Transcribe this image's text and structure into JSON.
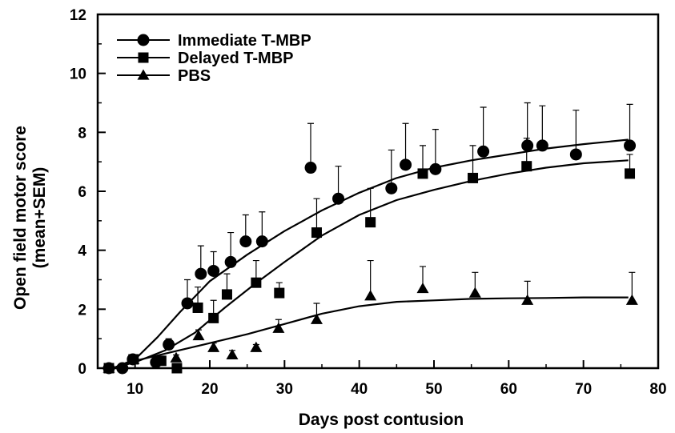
{
  "chart_data": {
    "type": "line",
    "title": "",
    "xlabel": "Days post contusion",
    "ylabel": "Open field motor score",
    "ylabel_sub": "(mean+SEM)",
    "xlim": [
      5,
      80
    ],
    "ylim": [
      0,
      12
    ],
    "x_ticks": [
      10,
      20,
      30,
      40,
      50,
      60,
      70,
      80
    ],
    "y_ticks": [
      0,
      2,
      4,
      6,
      8,
      10,
      12
    ],
    "grid": false,
    "legend_position": "top-left",
    "series": [
      {
        "name": "Immediate T-MBP",
        "marker": "circle",
        "points": [
          {
            "x": 6.5,
            "y": 0.0,
            "sem": 0.0
          },
          {
            "x": 8.3,
            "y": 0.0,
            "sem": 0.0
          },
          {
            "x": 9.7,
            "y": 0.3,
            "sem": 0.1
          },
          {
            "x": 12.8,
            "y": 0.2,
            "sem": 0.1
          },
          {
            "x": 14.5,
            "y": 0.8,
            "sem": 0.2
          },
          {
            "x": 17.0,
            "y": 2.2,
            "sem": 0.8
          },
          {
            "x": 18.8,
            "y": 3.2,
            "sem": 0.95
          },
          {
            "x": 20.5,
            "y": 3.3,
            "sem": 0.65
          },
          {
            "x": 22.8,
            "y": 3.6,
            "sem": 1.0
          },
          {
            "x": 24.8,
            "y": 4.3,
            "sem": 0.9
          },
          {
            "x": 27.0,
            "y": 4.3,
            "sem": 1.0
          },
          {
            "x": 33.5,
            "y": 6.8,
            "sem": 1.5
          },
          {
            "x": 37.2,
            "y": 5.75,
            "sem": 1.1
          },
          {
            "x": 44.3,
            "y": 6.1,
            "sem": 1.3
          },
          {
            "x": 46.2,
            "y": 6.9,
            "sem": 1.4
          },
          {
            "x": 50.2,
            "y": 6.75,
            "sem": 1.35
          },
          {
            "x": 56.6,
            "y": 7.35,
            "sem": 1.5
          },
          {
            "x": 62.5,
            "y": 7.55,
            "sem": 1.45
          },
          {
            "x": 64.5,
            "y": 7.55,
            "sem": 1.35
          },
          {
            "x": 69.0,
            "y": 7.25,
            "sem": 1.5
          },
          {
            "x": 76.2,
            "y": 7.55,
            "sem": 1.4
          }
        ],
        "fit": [
          [
            7,
            0.0
          ],
          [
            10,
            0.3
          ],
          [
            13,
            1.05
          ],
          [
            16,
            1.9
          ],
          [
            20,
            2.95
          ],
          [
            25,
            3.85
          ],
          [
            30,
            4.65
          ],
          [
            35,
            5.35
          ],
          [
            40,
            5.95
          ],
          [
            45,
            6.45
          ],
          [
            50,
            6.8
          ],
          [
            55,
            7.05
          ],
          [
            60,
            7.25
          ],
          [
            65,
            7.45
          ],
          [
            70,
            7.6
          ],
          [
            76,
            7.75
          ]
        ]
      },
      {
        "name": "Delayed T-MBP",
        "marker": "square",
        "points": [
          {
            "x": 6.5,
            "y": 0.0,
            "sem": 0.0
          },
          {
            "x": 9.8,
            "y": 0.3,
            "sem": 0.1
          },
          {
            "x": 13.5,
            "y": 0.25,
            "sem": 0.1
          },
          {
            "x": 15.6,
            "y": 0.0,
            "sem": 0.0
          },
          {
            "x": 18.4,
            "y": 2.05,
            "sem": 0.7
          },
          {
            "x": 20.5,
            "y": 1.7,
            "sem": 0.6
          },
          {
            "x": 22.3,
            "y": 2.5,
            "sem": 0.7
          },
          {
            "x": 26.2,
            "y": 2.9,
            "sem": 0.75
          },
          {
            "x": 29.3,
            "y": 2.55,
            "sem": 0.35
          },
          {
            "x": 34.3,
            "y": 4.6,
            "sem": 1.15
          },
          {
            "x": 41.5,
            "y": 4.95,
            "sem": 1.15
          },
          {
            "x": 48.5,
            "y": 6.6,
            "sem": 0.95
          },
          {
            "x": 55.2,
            "y": 6.45,
            "sem": 1.1
          },
          {
            "x": 62.4,
            "y": 6.85,
            "sem": 0.95
          },
          {
            "x": 76.2,
            "y": 6.6,
            "sem": 0.65
          }
        ],
        "fit": [
          [
            7,
            0.0
          ],
          [
            10,
            0.2
          ],
          [
            14,
            0.6
          ],
          [
            18,
            1.2
          ],
          [
            22,
            2.05
          ],
          [
            26,
            2.85
          ],
          [
            30,
            3.6
          ],
          [
            35,
            4.5
          ],
          [
            40,
            5.2
          ],
          [
            45,
            5.7
          ],
          [
            50,
            6.05
          ],
          [
            55,
            6.35
          ],
          [
            60,
            6.6
          ],
          [
            65,
            6.8
          ],
          [
            70,
            6.95
          ],
          [
            76,
            7.05
          ]
        ]
      },
      {
        "name": "PBS",
        "marker": "triangle",
        "points": [
          {
            "x": 6.5,
            "y": 0.0,
            "sem": 0.0
          },
          {
            "x": 9.8,
            "y": 0.3,
            "sem": 0.1
          },
          {
            "x": 15.5,
            "y": 0.35,
            "sem": 0.1
          },
          {
            "x": 18.5,
            "y": 1.1,
            "sem": 0.2
          },
          {
            "x": 20.5,
            "y": 0.7,
            "sem": 0.15
          },
          {
            "x": 23.0,
            "y": 0.45,
            "sem": 0.15
          },
          {
            "x": 26.2,
            "y": 0.7,
            "sem": 0.1
          },
          {
            "x": 29.2,
            "y": 1.35,
            "sem": 0.3
          },
          {
            "x": 34.3,
            "y": 1.65,
            "sem": 0.55
          },
          {
            "x": 41.5,
            "y": 2.45,
            "sem": 1.2
          },
          {
            "x": 48.5,
            "y": 2.7,
            "sem": 0.75
          },
          {
            "x": 55.5,
            "y": 2.55,
            "sem": 0.7
          },
          {
            "x": 62.5,
            "y": 2.3,
            "sem": 0.65
          },
          {
            "x": 76.5,
            "y": 2.3,
            "sem": 0.95
          }
        ],
        "fit": [
          [
            7,
            0.0
          ],
          [
            10,
            0.25
          ],
          [
            15,
            0.55
          ],
          [
            20,
            0.85
          ],
          [
            25,
            1.15
          ],
          [
            30,
            1.5
          ],
          [
            35,
            1.85
          ],
          [
            40,
            2.1
          ],
          [
            45,
            2.25
          ],
          [
            50,
            2.3
          ],
          [
            55,
            2.35
          ],
          [
            60,
            2.37
          ],
          [
            65,
            2.38
          ],
          [
            70,
            2.4
          ],
          [
            76,
            2.4
          ]
        ]
      }
    ]
  }
}
